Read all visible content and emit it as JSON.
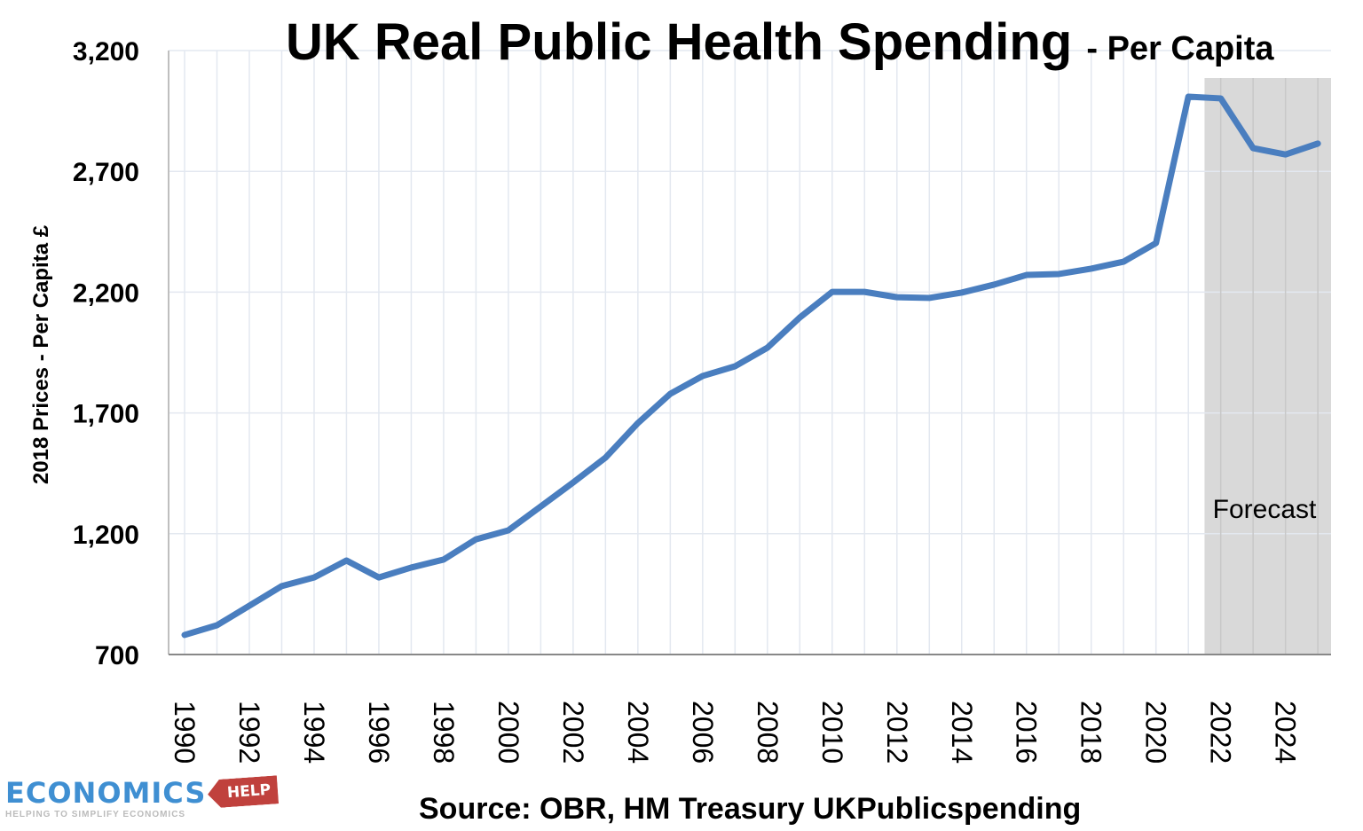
{
  "chart_data": {
    "type": "line",
    "title": "UK Real Public Health Spending",
    "subtitle": "- Per Capita",
    "xlabel": "",
    "ylabel": "2018 Prices - Per Capita £",
    "ylim": [
      700,
      3200
    ],
    "yticks": [
      "700",
      "1,200",
      "1,700",
      "2,200",
      "2,700",
      "3,200"
    ],
    "ytick_values": [
      700,
      1200,
      1700,
      2200,
      2700,
      3200
    ],
    "xticks": [
      "1990",
      "1992",
      "1994",
      "1996",
      "1998",
      "2000",
      "2002",
      "2004",
      "2006",
      "2008",
      "2010",
      "2012",
      "2014",
      "2016",
      "2018",
      "2020",
      "2022",
      "2024"
    ],
    "grid": true,
    "x": [
      1990,
      1991,
      1992,
      1993,
      1994,
      1995,
      1996,
      1997,
      1998,
      1999,
      2000,
      2001,
      2002,
      2003,
      2004,
      2005,
      2006,
      2007,
      2008,
      2009,
      2010,
      2011,
      2012,
      2013,
      2014,
      2015,
      2016,
      2017,
      2018,
      2019,
      2020,
      2021,
      2022,
      2023,
      2024,
      2025
    ],
    "series": [
      {
        "values": [
          781,
          821,
          902,
          983,
          1019,
          1089,
          1019,
          1060,
          1093,
          1177,
          1214,
          1313,
          1412,
          1515,
          1658,
          1779,
          1853,
          1893,
          1970,
          2095,
          2201,
          2201,
          2179,
          2176,
          2198,
          2231,
          2271,
          2275,
          2297,
          2326,
          2403,
          3009,
          3002,
          2796,
          2770,
          2815
        ],
        "color": "#4a7ebf"
      }
    ],
    "forecast_region": {
      "label": "Forecast",
      "from": 2021.5,
      "to": 2026,
      "color": "#d9d9d9"
    },
    "source": "Source: OBR, HM Treasury UKPublicspending"
  },
  "logo": {
    "name": "ECONOMICS",
    "tag": "HELP",
    "tagline": "HELPING TO SIMPLIFY ECONOMICS"
  }
}
